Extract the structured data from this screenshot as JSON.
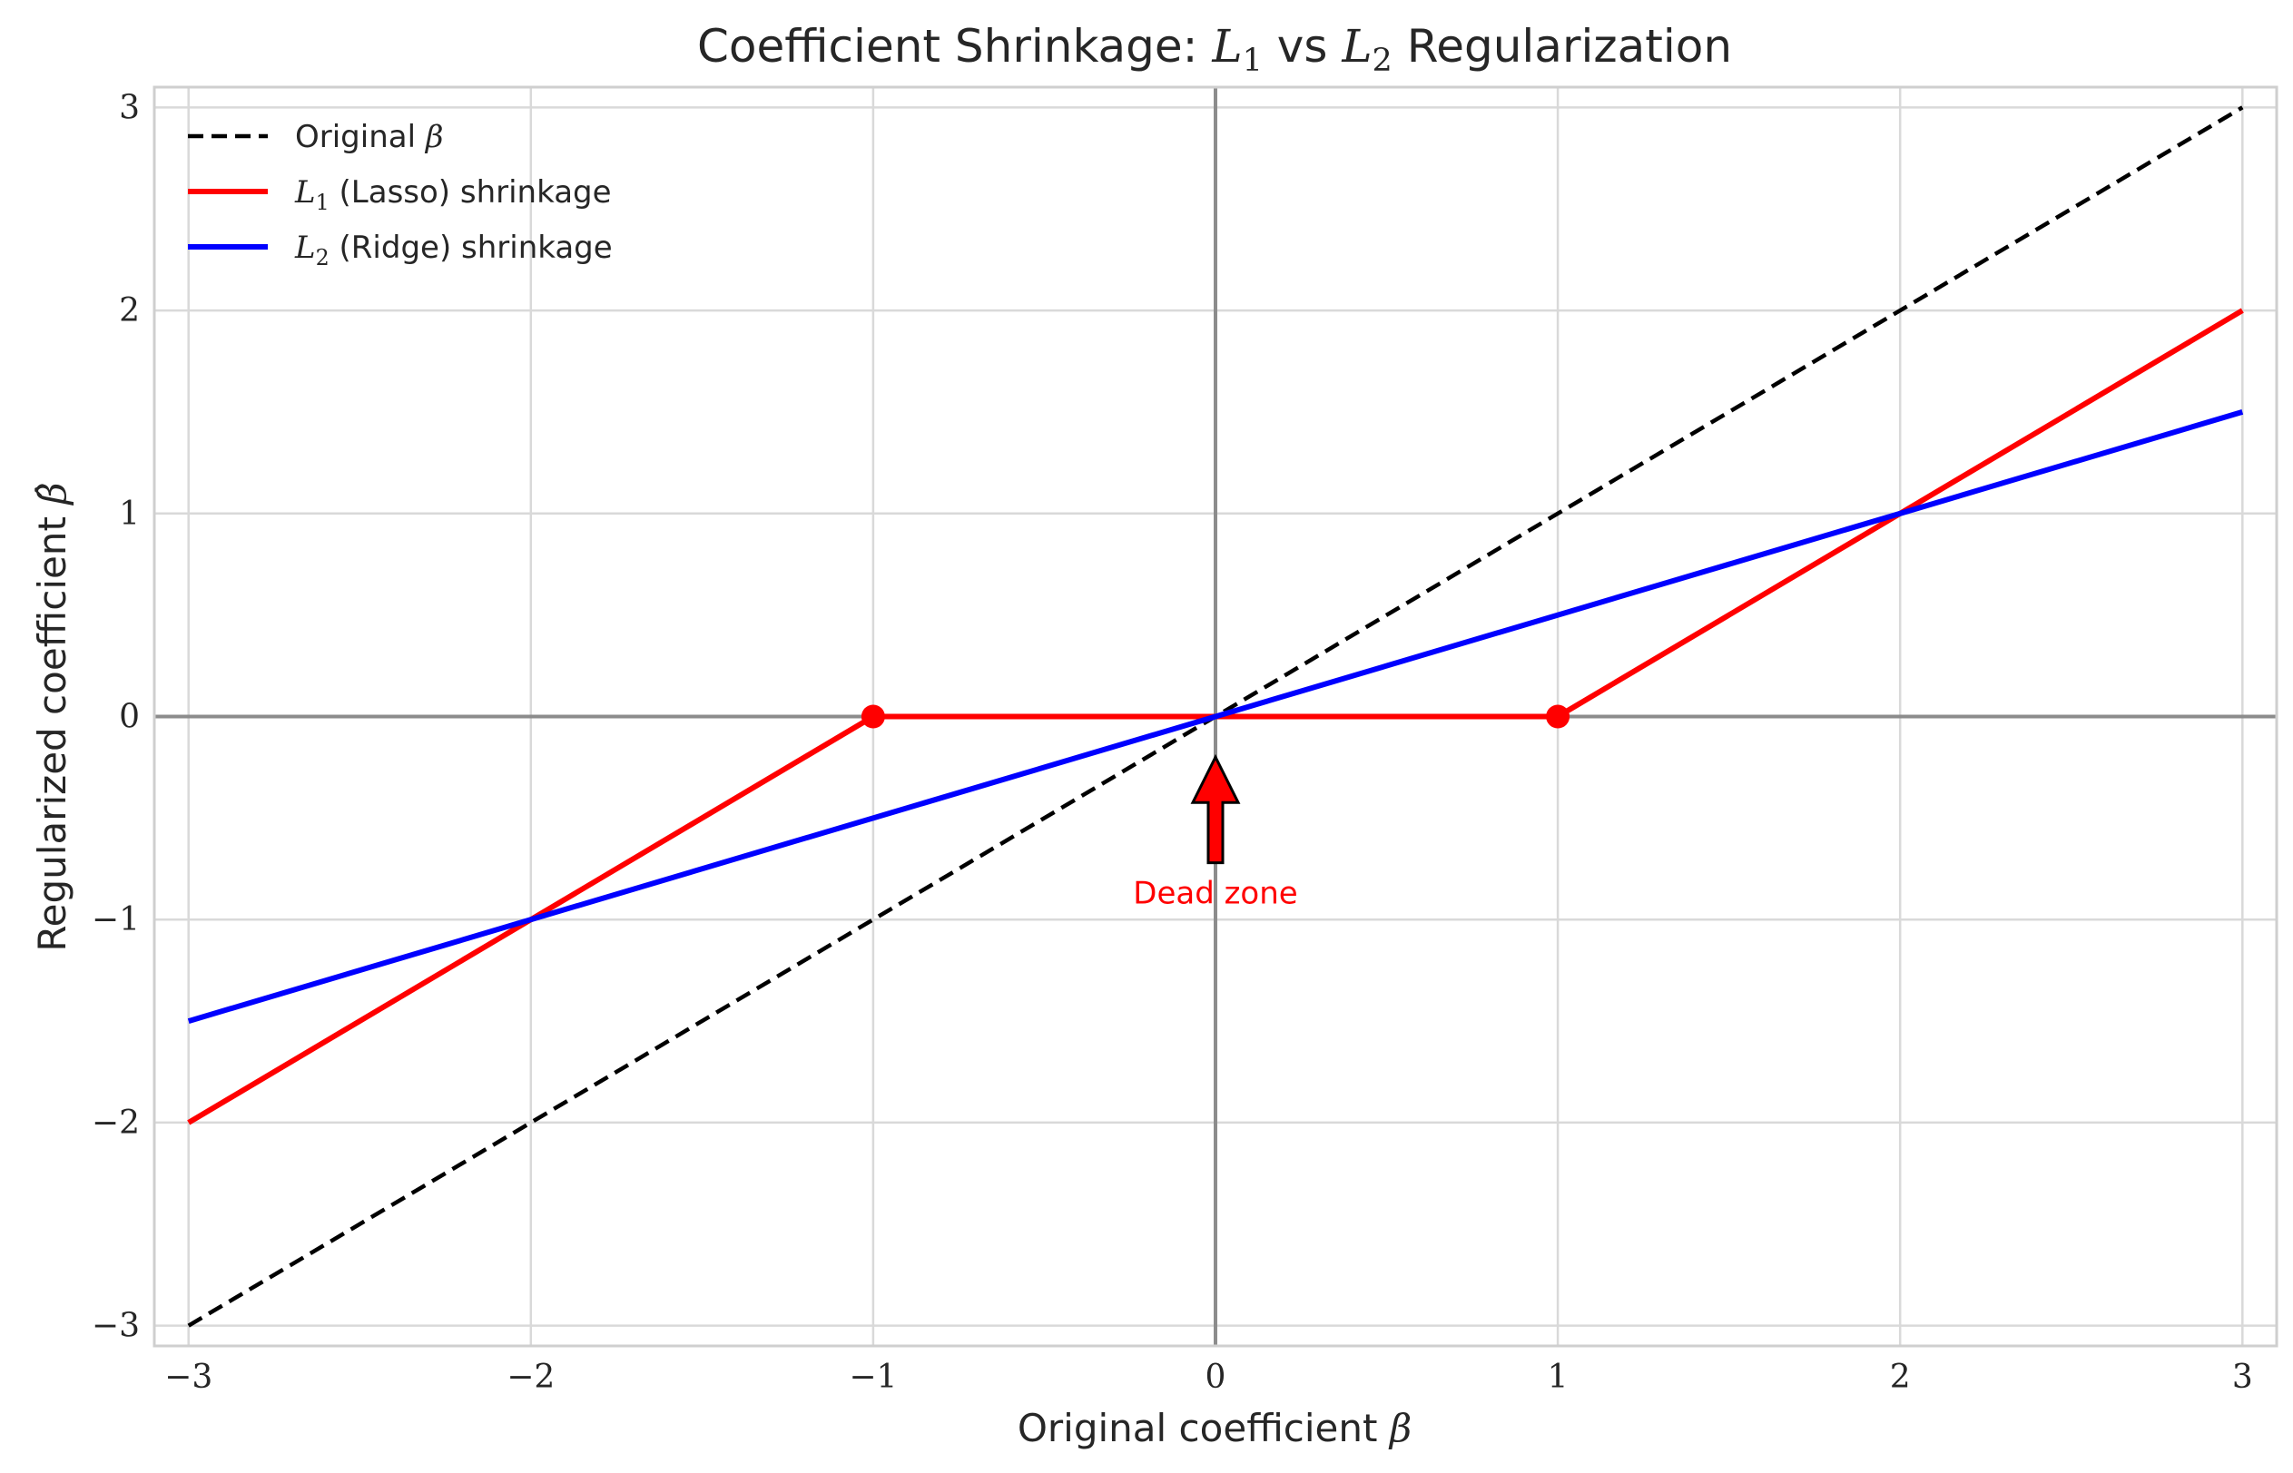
{
  "chart_data": {
    "type": "line",
    "title": {
      "before": "Coefficient Shrinkage: ",
      "l1_symbol": "L",
      "l1_sub": "1",
      "middle": " vs ",
      "l2_symbol": "L",
      "l2_sub": "2",
      "after": " Regularization"
    },
    "xlabel": {
      "text": "Original coefficient ",
      "symbol": "β"
    },
    "ylabel": {
      "text": "Regularized coefficient ",
      "symbol": "β̂"
    },
    "xlim": [
      -3.1,
      3.1
    ],
    "ylim": [
      -3.1,
      3.1
    ],
    "xticks": [
      -3,
      -2,
      -1,
      0,
      1,
      2,
      3
    ],
    "yticks": [
      -3,
      -2,
      -1,
      0,
      1,
      2,
      3
    ],
    "tick_labels": [
      "−3",
      "−2",
      "−1",
      "0",
      "1",
      "2",
      "3"
    ],
    "grid": true,
    "legend_position": "top-left",
    "series": [
      {
        "key": "original",
        "legend": {
          "before": "Original ",
          "symbol": "β",
          "sub": "",
          "after": ""
        },
        "color": "#000000",
        "style": "dashed",
        "x": [
          -3,
          3
        ],
        "y": [
          -3,
          3
        ]
      },
      {
        "key": "lasso",
        "legend": {
          "before": "",
          "symbol": "L",
          "sub": "1",
          "after": " (Lasso) shrinkage"
        },
        "color": "#ff0000",
        "style": "solid",
        "x": [
          -3,
          -1,
          1,
          3
        ],
        "y": [
          -2,
          0,
          0,
          2
        ]
      },
      {
        "key": "ridge",
        "legend": {
          "before": "",
          "symbol": "L",
          "sub": "2",
          "after": " (Ridge) shrinkage"
        },
        "color": "#0000ff",
        "style": "solid",
        "x": [
          -3,
          3
        ],
        "y": [
          -1.5,
          1.5
        ]
      }
    ],
    "markers": [
      {
        "x": -1,
        "y": 0,
        "color": "#ff0000"
      },
      {
        "x": 1,
        "y": 0,
        "color": "#ff0000"
      }
    ],
    "reference_lines": {
      "x": 0,
      "y": 0,
      "color": "#8c8c8c"
    },
    "annotation": {
      "text": "Dead zone",
      "color": "#ff0000",
      "arrow_from": [
        0,
        -0.72
      ],
      "arrow_to": [
        0,
        -0.2
      ]
    }
  }
}
